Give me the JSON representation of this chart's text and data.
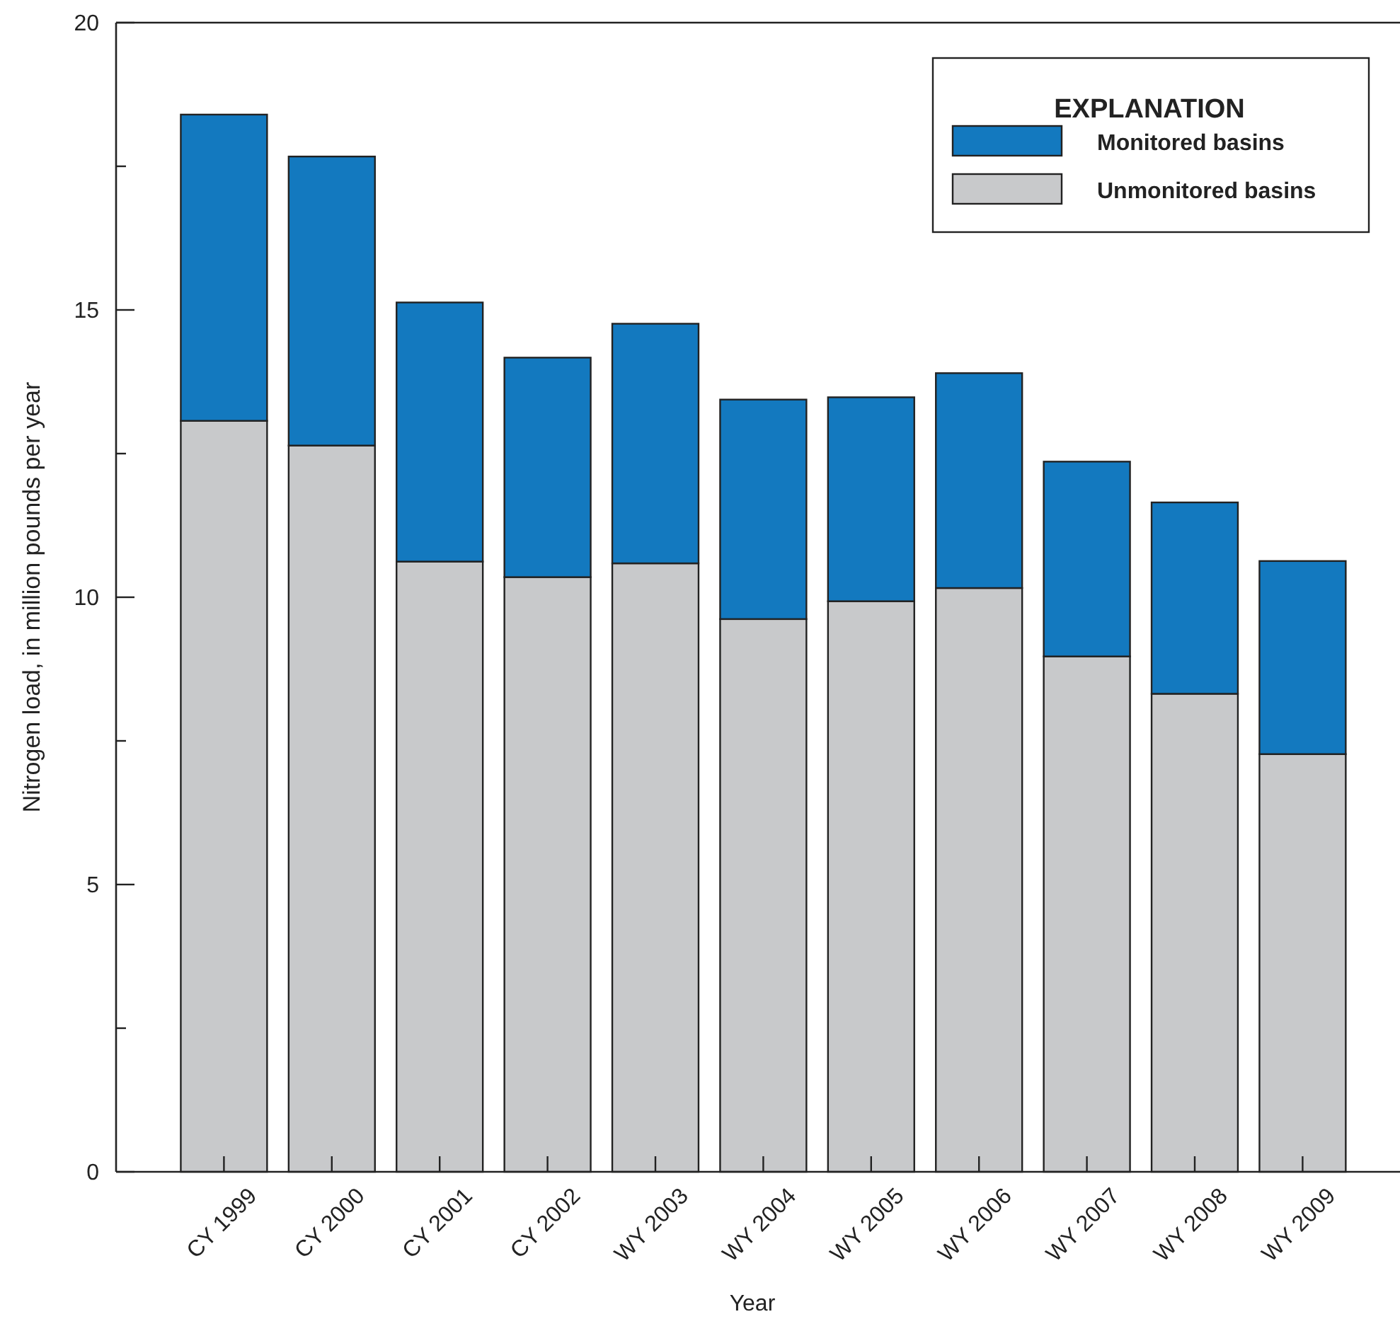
{
  "chart_data": {
    "type": "bar",
    "stacked": true,
    "xlabel": "Year",
    "ylabel": "Nitrogen load, in million pounds per year",
    "legend_title": "EXPLANATION",
    "legend": "top right",
    "categories": [
      "CY 1999",
      "CY 2000",
      "CY 2001",
      "CY 2002",
      "WY 2003",
      "WY 2004",
      "WY 2005",
      "WY 2006",
      "WY 2007",
      "WY 2008",
      "WY 2009"
    ],
    "series": [
      {
        "name": "Unmonitored basins",
        "color": "#c8c9cb",
        "values": [
          13.07,
          12.64,
          10.62,
          10.35,
          10.59,
          9.62,
          9.93,
          10.16,
          8.97,
          8.32,
          7.27
        ]
      },
      {
        "name": "Monitored basins",
        "color": "#1379bf",
        "values": [
          5.33,
          5.03,
          4.51,
          3.82,
          4.17,
          3.82,
          3.55,
          3.74,
          3.39,
          3.33,
          3.36
        ]
      }
    ],
    "ylim": [
      0,
      20
    ],
    "yticks": [
      0,
      {
        "value": 2.5,
        "label": null
      },
      5,
      {
        "value": 7.5,
        "label": null
      },
      10,
      {
        "value": 12.5,
        "label": null
      },
      15,
      {
        "value": 17.5,
        "label": null
      },
      20
    ]
  }
}
